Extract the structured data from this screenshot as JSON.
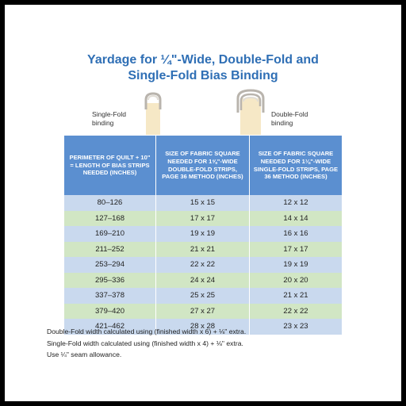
{
  "title": {
    "line1": "Yardage for ¼\"-Wide, Double-Fold and",
    "line2": "Single-Fold Bias Binding"
  },
  "illustration": {
    "single_fold_label_1": "Single-Fold",
    "single_fold_label_2": "binding",
    "double_fold_label_1": "Double-Fold",
    "double_fold_label_2": "binding",
    "colors": {
      "fabric": "#f6e8c6",
      "outline": "#b9b4ad",
      "fold": "#e1ddd6"
    }
  },
  "table": {
    "headers": [
      "Perimeter of Quilt + 10\" = Length of Bias Strips Needed (inches)",
      "Size of Fabric Square Needed for 1⅝\"-Wide Double-Fold Strips, page 36 method (inches)",
      "Size of Fabric Square Needed for 1⅛\"-Wide Single-Fold Strips, page 36 method (inches)"
    ],
    "rows": [
      [
        "80–126",
        "15 x 15",
        "12 x 12"
      ],
      [
        "127–168",
        "17 x 17",
        "14 x 14"
      ],
      [
        "169–210",
        "19 x 19",
        "16 x 16"
      ],
      [
        "211–252",
        "21 x 21",
        "17 x 17"
      ],
      [
        "253–294",
        "22 x 22",
        "19 x 19"
      ],
      [
        "295–336",
        "24 x 24",
        "20 x 20"
      ],
      [
        "337–378",
        "25 x 25",
        "21 x 21"
      ],
      [
        "379–420",
        "27 x 27",
        "22 x 22"
      ],
      [
        "421–462",
        "28 x 28",
        "23 x 23"
      ]
    ],
    "colors": {
      "header": "#5b8fd0",
      "row_blue": "#c9d9ee",
      "row_green": "#d1e6c4"
    }
  },
  "notes": [
    "Double-Fold width calculated using (finished width x 6) + ⅛\" extra.",
    "Single-Fold width calculated using (finished width x 4) + ⅛\" extra.",
    "Use ¼\" seam allowance."
  ]
}
